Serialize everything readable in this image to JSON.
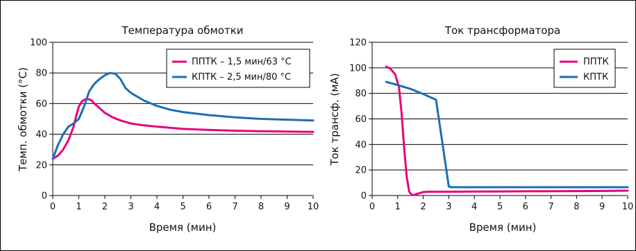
{
  "colors": {
    "series_1": "#e6007e",
    "series_2": "#1a6eb5",
    "grid": "#000000",
    "frame": "#000000"
  },
  "chart_data": [
    {
      "type": "line",
      "title": "Температура обмотки",
      "xlabel": "Время (мин)",
      "ylabel": "Темп. обмотки (°С)",
      "xlim": [
        0,
        10
      ],
      "ylim": [
        0,
        100
      ],
      "xticks": [
        0,
        1,
        2,
        3,
        4,
        5,
        6,
        7,
        8,
        9,
        10
      ],
      "yticks": [
        0,
        20,
        40,
        60,
        80,
        100
      ],
      "grid": "horizontal",
      "legend_position": "top-right",
      "series": [
        {
          "name": "ППТК – 1,5 мин/63 °С",
          "color": "#e6007e",
          "x": [
            0,
            0.2,
            0.4,
            0.6,
            0.8,
            0.9,
            1.0,
            1.1,
            1.2,
            1.3,
            1.4,
            1.5,
            1.6,
            1.8,
            2.0,
            2.3,
            2.6,
            3.0,
            3.5,
            4.0,
            5.0,
            6.0,
            7.0,
            8.0,
            9.0,
            10.0
          ],
          "y": [
            24,
            26,
            30,
            36,
            45,
            52,
            58,
            61,
            62.5,
            63,
            62.8,
            62,
            60,
            57,
            54,
            51,
            49,
            47,
            45.8,
            45,
            43.5,
            42.8,
            42.3,
            42,
            41.7,
            41.5
          ]
        },
        {
          "name": "КПТК – 2,5 мин/80 °С",
          "color": "#1a6eb5",
          "x": [
            0,
            0.2,
            0.4,
            0.6,
            0.8,
            1.0,
            1.2,
            1.4,
            1.6,
            1.8,
            2.0,
            2.2,
            2.4,
            2.6,
            2.8,
            3.0,
            3.5,
            4.0,
            4.5,
            5.0,
            6.0,
            7.0,
            8.0,
            9.0,
            10.0
          ],
          "y": [
            24,
            33,
            40,
            45,
            47,
            50,
            58,
            68,
            73,
            76,
            78.5,
            80,
            79.5,
            76,
            70,
            67,
            62,
            58.5,
            56,
            54.5,
            52.5,
            51,
            50,
            49.5,
            49
          ]
        }
      ]
    },
    {
      "type": "line",
      "title": "Ток трансформатора",
      "xlabel": "Время (мин)",
      "ylabel": "Ток трансф. (мА)",
      "xlim": [
        0,
        10
      ],
      "ylim": [
        0,
        120
      ],
      "xticks": [
        0,
        1,
        2,
        3,
        4,
        5,
        6,
        7,
        8,
        9,
        10
      ],
      "yticks": [
        0,
        20,
        40,
        60,
        80,
        100,
        120
      ],
      "grid": "horizontal",
      "legend_position": "top-right",
      "series": [
        {
          "name": "ППТК",
          "color": "#e6007e",
          "x": [
            0.55,
            0.7,
            0.9,
            1.05,
            1.15,
            1.25,
            1.35,
            1.45,
            1.55,
            1.65,
            1.8,
            2.0,
            2.2,
            3.0,
            4.0,
            5.0,
            6.0,
            7.0,
            8.0,
            9.0,
            10.0
          ],
          "y": [
            101,
            99.5,
            95,
            85,
            65,
            38,
            15,
            3,
            0.5,
            0.5,
            1.5,
            2.7,
            3,
            3,
            3.1,
            3.2,
            3.3,
            3.4,
            3.5,
            3.6,
            3.8
          ]
        },
        {
          "name": "КПТК",
          "color": "#1a6eb5",
          "x": [
            0.55,
            1.0,
            1.5,
            2.0,
            2.5,
            3.0,
            3.1,
            4.0,
            5.0,
            6.0,
            7.0,
            8.0,
            9.0,
            10.0
          ],
          "y": [
            89,
            86.5,
            83.5,
            79.5,
            75,
            7,
            6.5,
            6.5,
            6.5,
            6.5,
            6.5,
            6.5,
            6.5,
            6.5
          ]
        }
      ]
    }
  ]
}
